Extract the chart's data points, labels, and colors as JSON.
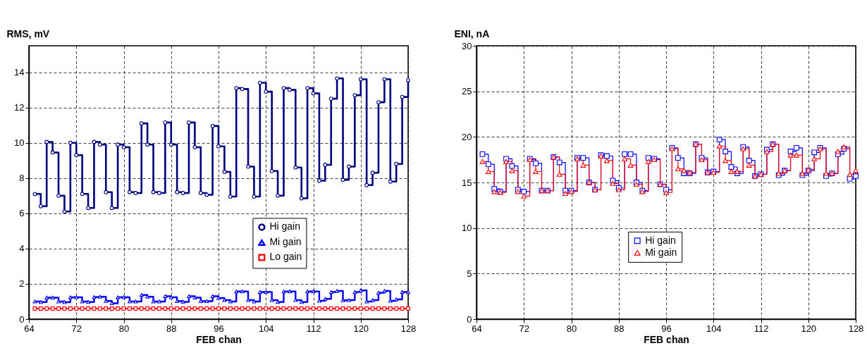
{
  "chart_data": [
    {
      "type": "step",
      "xlabel": "FEB chan",
      "ylabel": "RMS, mV",
      "xlim": [
        64,
        128
      ],
      "xticks": [
        64,
        72,
        80,
        88,
        96,
        104,
        112,
        120,
        128
      ],
      "ylim": [
        0,
        15.5
      ],
      "yticks": [
        0,
        2,
        4,
        6,
        8,
        10,
        12,
        14
      ],
      "grid": true,
      "legend": "right",
      "line_style": "solid",
      "x": [
        65,
        66,
        67,
        68,
        69,
        70,
        71,
        72,
        73,
        74,
        75,
        76,
        77,
        78,
        79,
        80,
        81,
        82,
        83,
        84,
        85,
        86,
        87,
        88,
        89,
        90,
        91,
        92,
        93,
        94,
        95,
        96,
        97,
        98,
        99,
        100,
        101,
        102,
        103,
        104,
        105,
        106,
        107,
        108,
        109,
        110,
        111,
        112,
        113,
        114,
        115,
        116,
        117,
        118,
        119,
        120,
        121,
        122,
        123,
        124,
        125,
        126,
        127,
        128
      ],
      "series": [
        {
          "name": "Hi gain",
          "color": "#000080",
          "marker": "circle",
          "values": [
            7.1,
            6.4,
            10.05,
            9.45,
            7.0,
            6.1,
            10.0,
            9.3,
            7.1,
            6.3,
            10.05,
            9.9,
            7.2,
            6.3,
            9.9,
            9.75,
            7.2,
            7.15,
            11.1,
            9.9,
            7.2,
            7.15,
            11.15,
            9.9,
            7.2,
            7.15,
            11.15,
            9.75,
            7.15,
            7.05,
            10.95,
            9.8,
            8.35,
            6.95,
            13.1,
            13.05,
            8.65,
            6.95,
            13.4,
            12.9,
            8.4,
            7.0,
            13.1,
            13.0,
            8.6,
            6.85,
            13.1,
            12.8,
            7.85,
            8.75,
            12.5,
            13.65,
            7.9,
            8.65,
            12.7,
            13.6,
            7.6,
            8.3,
            12.3,
            13.6,
            7.8,
            8.8,
            12.6,
            13.55
          ]
        },
        {
          "name": "Mi gain",
          "color": "#0000ff",
          "marker": "triangle",
          "values": [
            1.0,
            0.97,
            1.22,
            1.22,
            1.0,
            0.96,
            1.24,
            1.24,
            1.0,
            0.97,
            1.25,
            1.27,
            1.03,
            0.9,
            1.24,
            1.24,
            1.0,
            1.0,
            1.37,
            1.27,
            1.0,
            1.0,
            1.3,
            1.24,
            1.02,
            0.98,
            1.3,
            1.22,
            1.02,
            1.02,
            1.3,
            1.2,
            1.08,
            1.0,
            1.57,
            1.57,
            1.08,
            1.0,
            1.54,
            1.54,
            1.08,
            0.97,
            1.57,
            1.57,
            1.08,
            0.97,
            1.57,
            1.57,
            1.04,
            1.15,
            1.54,
            1.6,
            1.07,
            1.08,
            1.54,
            1.63,
            1.0,
            1.08,
            1.5,
            1.6,
            1.04,
            1.12,
            1.54,
            1.54
          ]
        },
        {
          "name": "Lo gain",
          "color": "#ff0000",
          "marker": "square",
          "values": [
            0.6,
            0.6,
            0.6,
            0.6,
            0.6,
            0.6,
            0.6,
            0.6,
            0.6,
            0.6,
            0.6,
            0.6,
            0.6,
            0.6,
            0.6,
            0.6,
            0.6,
            0.6,
            0.6,
            0.6,
            0.6,
            0.6,
            0.6,
            0.6,
            0.6,
            0.6,
            0.6,
            0.6,
            0.6,
            0.6,
            0.6,
            0.6,
            0.6,
            0.6,
            0.6,
            0.6,
            0.6,
            0.6,
            0.6,
            0.6,
            0.6,
            0.6,
            0.6,
            0.6,
            0.6,
            0.6,
            0.6,
            0.6,
            0.6,
            0.6,
            0.6,
            0.6,
            0.6,
            0.6,
            0.6,
            0.6,
            0.6,
            0.6,
            0.6,
            0.6,
            0.6,
            0.6,
            0.6,
            0.6
          ]
        }
      ]
    },
    {
      "type": "step",
      "xlabel": "FEB chan",
      "ylabel": "ENI, nA",
      "xlim": [
        64,
        128
      ],
      "xticks": [
        64,
        72,
        80,
        88,
        96,
        104,
        112,
        120,
        128
      ],
      "ylim": [
        0,
        30
      ],
      "yticks": [
        0,
        5,
        10,
        15,
        20,
        25,
        30
      ],
      "grid": true,
      "legend": "bottom",
      "line_style": "solid",
      "x": [
        65,
        66,
        67,
        68,
        69,
        70,
        71,
        72,
        73,
        74,
        75,
        76,
        77,
        78,
        79,
        80,
        81,
        82,
        83,
        84,
        85,
        86,
        87,
        88,
        89,
        90,
        91,
        92,
        93,
        94,
        95,
        96,
        97,
        98,
        99,
        100,
        101,
        102,
        103,
        104,
        105,
        106,
        107,
        108,
        109,
        110,
        111,
        112,
        113,
        114,
        115,
        116,
        117,
        118,
        119,
        120,
        121,
        122,
        123,
        124,
        125,
        126,
        127,
        128
      ],
      "series": [
        {
          "name": "Hi gain",
          "color": "#0000ff",
          "marker": "square",
          "values": [
            18.1,
            17.0,
            14.3,
            14.0,
            17.6,
            16.8,
            14.2,
            14.0,
            17.6,
            17.1,
            14.1,
            14.1,
            17.8,
            17.2,
            14.1,
            14.1,
            17.7,
            17.7,
            15.0,
            14.2,
            18.0,
            17.9,
            15.2,
            14.4,
            18.1,
            18.1,
            15.0,
            14.1,
            17.7,
            17.6,
            14.8,
            14.2,
            18.8,
            17.7,
            16.0,
            16.0,
            19.2,
            17.7,
            16.1,
            16.2,
            19.7,
            18.4,
            16.7,
            16.0,
            18.9,
            17.4,
            15.7,
            15.9,
            18.6,
            19.2,
            15.8,
            16.3,
            18.4,
            18.8,
            15.8,
            16.3,
            18.3,
            18.8,
            15.7,
            16.0,
            18.1,
            18.7,
            15.4,
            15.7
          ]
        },
        {
          "name": "Mi gain",
          "color": "#ff0000",
          "marker": "triangle",
          "values": [
            17.3,
            16.2,
            14.0,
            13.9,
            17.3,
            16.3,
            14.0,
            13.5,
            17.5,
            16.2,
            14.1,
            14.1,
            17.8,
            15.9,
            13.8,
            14.0,
            17.6,
            16.9,
            15.0,
            14.2,
            17.9,
            17.4,
            14.9,
            14.2,
            17.6,
            16.9,
            14.8,
            14.0,
            17.3,
            17.5,
            14.8,
            13.9,
            18.7,
            16.5,
            16.3,
            16.1,
            19.2,
            17.5,
            16.1,
            16.1,
            19.0,
            17.4,
            16.2,
            16.2,
            18.7,
            16.9,
            15.7,
            15.9,
            18.4,
            19.2,
            16.0,
            16.3,
            18.0,
            18.0,
            16.0,
            16.4,
            17.6,
            18.7,
            16.0,
            16.0,
            18.4,
            18.9,
            15.9,
            16.3
          ]
        }
      ]
    }
  ]
}
